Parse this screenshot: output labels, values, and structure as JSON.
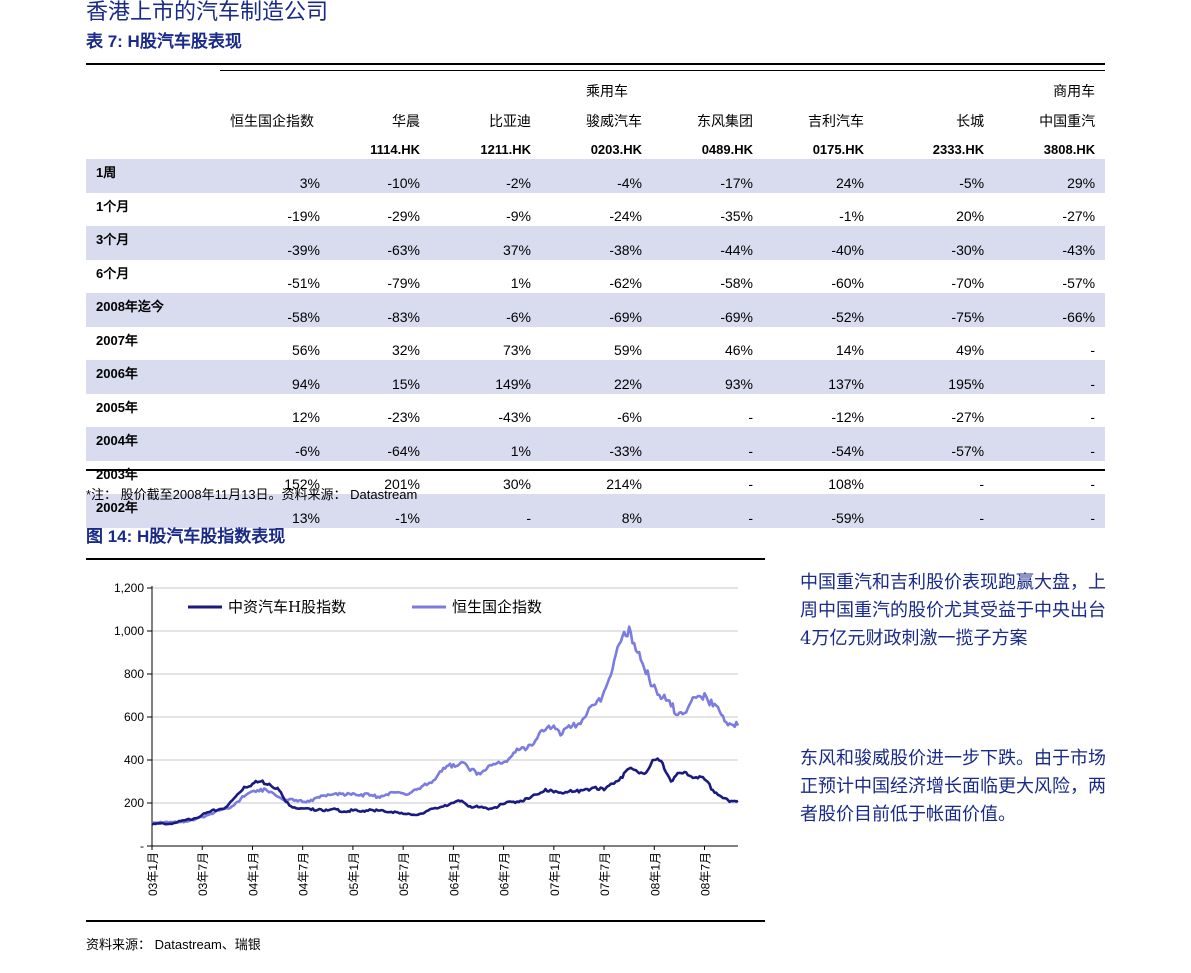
{
  "document": {
    "title": "香港上市的汽车制造公司",
    "table_caption": "表 7: H股汽车股表现",
    "note": "*注： 股价截至2008年11月13日。资料来源： Datastream",
    "figure_caption": "图 14: H股汽车股指数表现",
    "source": "资料来源： Datastream、瑞银"
  },
  "table": {
    "group_passenger": "乘用车",
    "group_commercial": "商用车",
    "columns": [
      {
        "name": "恒生国企指数",
        "code": ""
      },
      {
        "name": "华晨",
        "code": "1114.HK"
      },
      {
        "name": "比亚迪",
        "code": "1211.HK"
      },
      {
        "name": "骏威汽车",
        "code": "0203.HK"
      },
      {
        "name": "东风集团",
        "code": "0489.HK"
      },
      {
        "name": "吉利汽车",
        "code": "0175.HK"
      },
      {
        "name": "长城",
        "code": "2333.HK"
      },
      {
        "name": "中国重汽",
        "code": "3808.HK"
      }
    ],
    "rows": [
      {
        "label": "1周",
        "values": [
          "3%",
          "-10%",
          "-2%",
          "-4%",
          "-17%",
          "24%",
          "-5%",
          "29%"
        ]
      },
      {
        "label": "1个月",
        "values": [
          "-19%",
          "-29%",
          "-9%",
          "-24%",
          "-35%",
          "-1%",
          "20%",
          "-27%"
        ]
      },
      {
        "label": "3个月",
        "values": [
          "-39%",
          "-63%",
          "37%",
          "-38%",
          "-44%",
          "-40%",
          "-30%",
          "-43%"
        ]
      },
      {
        "label": "6个月",
        "values": [
          "-51%",
          "-79%",
          "1%",
          "-62%",
          "-58%",
          "-60%",
          "-70%",
          "-57%"
        ]
      },
      {
        "label": "2008年迄今",
        "values": [
          "-58%",
          "-83%",
          "-6%",
          "-69%",
          "-69%",
          "-52%",
          "-75%",
          "-66%"
        ]
      },
      {
        "label": "2007年",
        "values": [
          "56%",
          "32%",
          "73%",
          "59%",
          "46%",
          "14%",
          "49%",
          "-"
        ]
      },
      {
        "label": "2006年",
        "values": [
          "94%",
          "15%",
          "149%",
          "22%",
          "93%",
          "137%",
          "195%",
          "-"
        ]
      },
      {
        "label": "2005年",
        "values": [
          "12%",
          "-23%",
          "-43%",
          "-6%",
          "-",
          "-12%",
          "-27%",
          "-"
        ]
      },
      {
        "label": "2004年",
        "values": [
          "-6%",
          "-64%",
          "1%",
          "-33%",
          "-",
          "-54%",
          "-57%",
          "-"
        ]
      },
      {
        "label": "2003年",
        "values": [
          "152%",
          "201%",
          "30%",
          "214%",
          "-",
          "108%",
          "-",
          "-"
        ]
      },
      {
        "label": "2002年",
        "values": [
          "13%",
          "-1%",
          "-",
          "8%",
          "-",
          "-59%",
          "-",
          "-"
        ]
      }
    ],
    "shaded_rows": [
      0,
      2,
      4,
      6,
      8,
      10
    ],
    "shade_color": "#d9dcef"
  },
  "chart_data": {
    "type": "line",
    "ylim": [
      0,
      1200
    ],
    "y_ticks": [
      0,
      200,
      400,
      600,
      800,
      1000,
      1200
    ],
    "y_tick_labels": [
      "-",
      "200",
      "400",
      "600",
      "800",
      "1,000",
      "1,200"
    ],
    "x_tick_labels": [
      "03年1月",
      "03年7月",
      "04年1月",
      "04年7月",
      "05年1月",
      "05年7月",
      "06年1月",
      "06年7月",
      "07年1月",
      "07年7月",
      "08年1月",
      "08年7月"
    ],
    "x_range_months": [
      0,
      70
    ],
    "grid": true,
    "legend_position": "top-left",
    "series": [
      {
        "name": "中资汽车H股指数",
        "color": "#1a1a80",
        "points": [
          [
            0,
            100
          ],
          [
            1,
            105
          ],
          [
            2,
            103
          ],
          [
            3,
            110
          ],
          [
            4,
            120
          ],
          [
            5,
            128
          ],
          [
            6,
            145
          ],
          [
            7,
            160
          ],
          [
            8,
            170
          ],
          [
            9,
            185
          ],
          [
            10,
            230
          ],
          [
            11,
            275
          ],
          [
            12,
            290
          ],
          [
            13,
            300
          ],
          [
            14,
            290
          ],
          [
            15,
            270
          ],
          [
            16,
            205
          ],
          [
            17,
            180
          ],
          [
            18,
            175
          ],
          [
            19,
            168
          ],
          [
            20,
            172
          ],
          [
            21,
            165
          ],
          [
            22,
            170
          ],
          [
            23,
            160
          ],
          [
            24,
            165
          ],
          [
            25,
            160
          ],
          [
            26,
            170
          ],
          [
            27,
            165
          ],
          [
            28,
            158
          ],
          [
            29,
            160
          ],
          [
            30,
            150
          ],
          [
            31,
            145
          ],
          [
            32,
            150
          ],
          [
            33,
            165
          ],
          [
            34,
            175
          ],
          [
            35,
            190
          ],
          [
            36,
            200
          ],
          [
            37,
            210
          ],
          [
            38,
            185
          ],
          [
            39,
            180
          ],
          [
            40,
            175
          ],
          [
            41,
            180
          ],
          [
            42,
            195
          ],
          [
            43,
            205
          ],
          [
            44,
            210
          ],
          [
            45,
            220
          ],
          [
            46,
            240
          ],
          [
            47,
            265
          ],
          [
            48,
            250
          ],
          [
            49,
            245
          ],
          [
            50,
            260
          ],
          [
            51,
            250
          ],
          [
            52,
            265
          ],
          [
            53,
            275
          ],
          [
            54,
            260
          ],
          [
            55,
            290
          ],
          [
            56,
            320
          ],
          [
            57,
            360
          ],
          [
            58,
            345
          ],
          [
            59,
            340
          ],
          [
            60,
            400
          ],
          [
            61,
            385
          ],
          [
            62,
            300
          ],
          [
            63,
            340
          ],
          [
            64,
            330
          ],
          [
            65,
            320
          ],
          [
            66,
            310
          ],
          [
            67,
            260
          ],
          [
            68,
            230
          ],
          [
            69,
            205
          ],
          [
            70,
            210
          ]
        ]
      },
      {
        "name": "恒生国企指数",
        "color": "#7b7be0",
        "points": [
          [
            0,
            110
          ],
          [
            1,
            112
          ],
          [
            2,
            108
          ],
          [
            3,
            110
          ],
          [
            4,
            115
          ],
          [
            5,
            120
          ],
          [
            6,
            135
          ],
          [
            7,
            150
          ],
          [
            8,
            165
          ],
          [
            9,
            175
          ],
          [
            10,
            200
          ],
          [
            11,
            230
          ],
          [
            12,
            255
          ],
          [
            13,
            265
          ],
          [
            14,
            250
          ],
          [
            15,
            230
          ],
          [
            16,
            215
          ],
          [
            17,
            210
          ],
          [
            18,
            205
          ],
          [
            19,
            215
          ],
          [
            20,
            225
          ],
          [
            21,
            240
          ],
          [
            22,
            245
          ],
          [
            23,
            235
          ],
          [
            24,
            245
          ],
          [
            25,
            240
          ],
          [
            26,
            235
          ],
          [
            27,
            230
          ],
          [
            28,
            240
          ],
          [
            29,
            250
          ],
          [
            30,
            245
          ],
          [
            31,
            250
          ],
          [
            32,
            265
          ],
          [
            33,
            290
          ],
          [
            34,
            320
          ],
          [
            35,
            360
          ],
          [
            36,
            380
          ],
          [
            37,
            390
          ],
          [
            38,
            350
          ],
          [
            39,
            340
          ],
          [
            40,
            360
          ],
          [
            41,
            380
          ],
          [
            42,
            390
          ],
          [
            43,
            420
          ],
          [
            44,
            450
          ],
          [
            45,
            470
          ],
          [
            46,
            500
          ],
          [
            47,
            540
          ],
          [
            48,
            560
          ],
          [
            49,
            520
          ],
          [
            50,
            550
          ],
          [
            51,
            570
          ],
          [
            52,
            620
          ],
          [
            53,
            660
          ],
          [
            54,
            720
          ],
          [
            55,
            820
          ],
          [
            56,
            950
          ],
          [
            57,
            1020
          ],
          [
            58,
            900
          ],
          [
            59,
            800
          ],
          [
            60,
            750
          ],
          [
            61,
            690
          ],
          [
            62,
            650
          ],
          [
            63,
            620
          ],
          [
            64,
            640
          ],
          [
            65,
            690
          ],
          [
            66,
            710
          ],
          [
            67,
            650
          ],
          [
            68,
            610
          ],
          [
            69,
            570
          ],
          [
            70,
            560
          ]
        ]
      }
    ]
  },
  "commentary": [
    "中国重汽和吉利股价表现跑赢大盘，上周中国重汽的股价尤其受益于中央出台4万亿元财政刺激一揽子方案",
    "东风和骏威股价进一步下跌。由于市场正预计中国经济增长面临更大风险，两者股价目前低于帐面价值。"
  ]
}
